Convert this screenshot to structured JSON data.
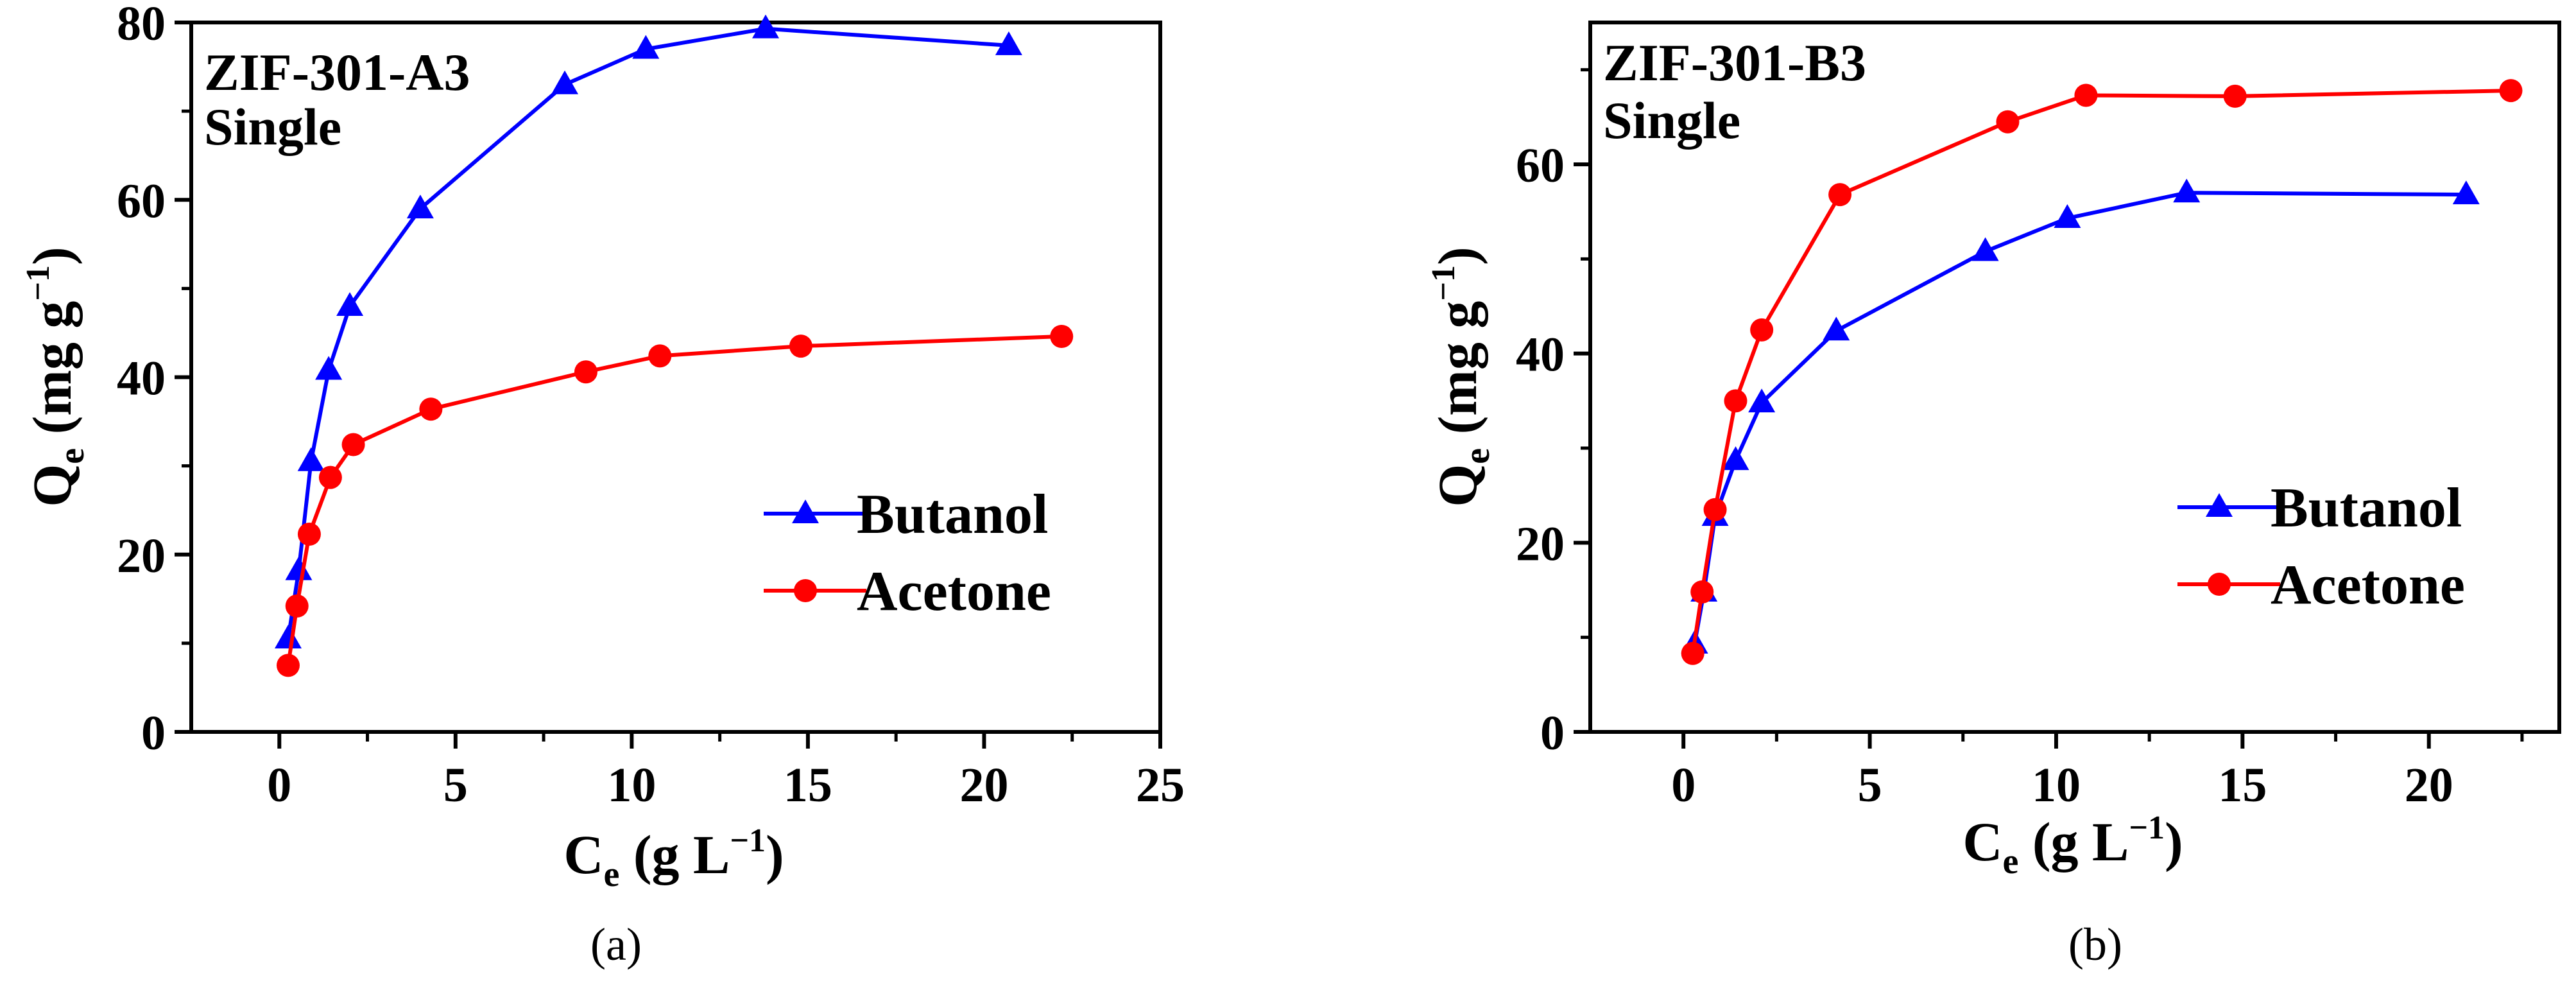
{
  "chart_data": [
    {
      "type": "line",
      "panel_label": "(a)",
      "annotation": [
        "ZIF-301-A3",
        "Single"
      ],
      "xlabel": {
        "main": "C",
        "sub": "e",
        "unit_start": " (g L",
        "sup": "−1",
        "unit_end": ")"
      },
      "ylabel": {
        "main": "Q",
        "sub": "e",
        "unit_start": " (mg g",
        "sup": "−1",
        "unit_end": ")"
      },
      "xlim": [
        -2.5,
        25
      ],
      "ylim": [
        0,
        80
      ],
      "xticks": [
        0,
        5,
        10,
        15,
        20,
        25
      ],
      "yticks": [
        0,
        20,
        40,
        60,
        80
      ],
      "xtick_labels": [
        "0",
        "5",
        "10",
        "15",
        "20",
        "25"
      ],
      "ytick_labels": [
        "0",
        "20",
        "40",
        "60",
        "80"
      ],
      "legend_position": "bottom-right",
      "series": [
        {
          "name": "Butanol",
          "color": "#0000ff",
          "marker": "triangle",
          "x": [
            0.25,
            0.55,
            0.9,
            1.4,
            2.0,
            4.0,
            8.1,
            10.4,
            13.8,
            20.7
          ],
          "y": [
            10.5,
            18.2,
            30.5,
            40.8,
            48.0,
            59.0,
            73.0,
            77.0,
            79.3,
            77.4
          ]
        },
        {
          "name": "Acetone",
          "color": "#ff0000",
          "marker": "circle",
          "x": [
            0.25,
            0.5,
            0.85,
            1.45,
            2.1,
            4.3,
            8.7,
            10.8,
            14.8,
            22.2
          ],
          "y": [
            7.5,
            14.2,
            22.3,
            28.7,
            32.4,
            36.4,
            40.6,
            42.4,
            43.5,
            44.6
          ]
        }
      ]
    },
    {
      "type": "line",
      "panel_label": "(b)",
      "annotation": [
        "ZIF-301-B3",
        "Single"
      ],
      "xlabel": {
        "main": "C",
        "sub": "e",
        "unit_start": " (g L",
        "sup": "−1",
        "unit_end": ")"
      },
      "ylabel": {
        "main": "Q",
        "sub": "e",
        "unit_start": " (mg g",
        "sup": "−1",
        "unit_end": ")"
      },
      "xlim": [
        -2.5,
        23.5
      ],
      "ylim": [
        0,
        75
      ],
      "xticks": [
        0,
        5,
        10,
        15,
        20
      ],
      "yticks": [
        0,
        20,
        40,
        60
      ],
      "xtick_labels": [
        "0",
        "5",
        "10",
        "15",
        "20"
      ],
      "ytick_labels": [
        "0",
        "20",
        "40",
        "60"
      ],
      "legend_position": "bottom-right",
      "series": [
        {
          "name": "Butanol",
          "color": "#0000ff",
          "marker": "triangle",
          "x": [
            0.3,
            0.55,
            0.85,
            1.4,
            2.1,
            4.1,
            8.1,
            10.3,
            13.5,
            21.0
          ],
          "y": [
            9.3,
            14.8,
            22.8,
            28.7,
            34.8,
            42.4,
            50.8,
            54.3,
            57.0,
            56.8
          ]
        },
        {
          "name": "Acetone",
          "color": "#ff0000",
          "marker": "circle",
          "x": [
            0.25,
            0.5,
            0.85,
            1.4,
            2.1,
            4.2,
            8.7,
            10.8,
            14.8,
            22.2
          ],
          "y": [
            8.3,
            14.8,
            23.5,
            35.0,
            42.5,
            56.8,
            64.5,
            67.3,
            67.2,
            67.8
          ]
        }
      ]
    }
  ]
}
